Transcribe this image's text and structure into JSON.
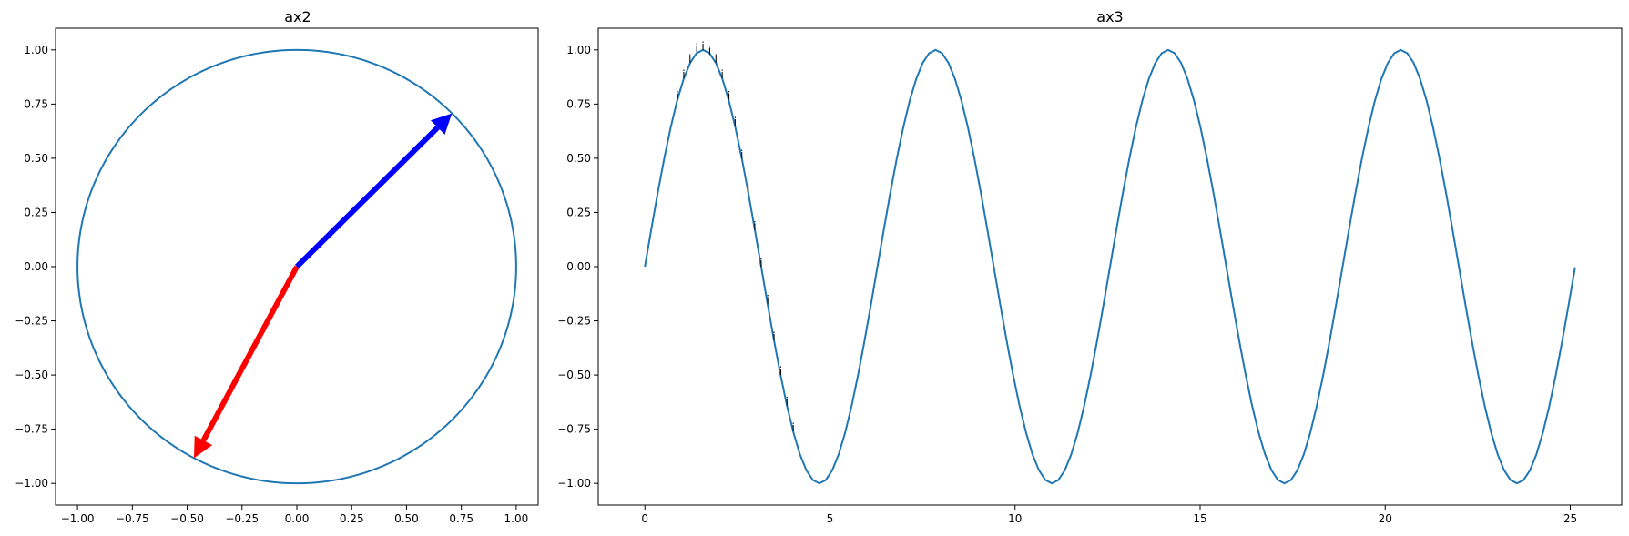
{
  "chart_data": [
    {
      "type": "line",
      "title": "ax2",
      "xlim": [
        -1.1,
        1.1
      ],
      "ylim": [
        -1.1,
        1.1
      ],
      "xticks": [
        "−1.00",
        "−0.75",
        "−0.50",
        "−0.25",
        "0.00",
        "0.25",
        "0.50",
        "0.75",
        "1.00"
      ],
      "yticks": [
        "−1.00",
        "−0.75",
        "−0.50",
        "−0.25",
        "0.00",
        "0.25",
        "0.50",
        "0.75",
        "1.00"
      ],
      "series": [
        {
          "shape": "unit circle",
          "radius": 1.0,
          "color": "#1f77b4"
        }
      ],
      "arrows": [
        {
          "from": [
            0,
            0
          ],
          "to": [
            0.707,
            0.707
          ],
          "color": "#0000ff"
        },
        {
          "from": [
            0,
            0
          ],
          "to": [
            -0.469,
            -0.883
          ],
          "color": "#ff0000"
        }
      ],
      "grid": false
    },
    {
      "type": "line",
      "title": "ax3",
      "xlim": [
        -1.26,
        26.39
      ],
      "ylim": [
        -1.1,
        1.1
      ],
      "xticks": [
        "0",
        "5",
        "10",
        "15",
        "20",
        "25"
      ],
      "yticks": [
        "−1.00",
        "−0.75",
        "−0.50",
        "−0.25",
        "0.00",
        "0.25",
        "0.50",
        "0.75",
        "1.00"
      ],
      "series": [
        {
          "function": "sin(x)",
          "x_range": [
            0,
            25.13
          ],
          "color": "#1f77b4"
        }
      ],
      "annotation_text": "i",
      "annotations": [
        {
          "x": 0.88,
          "y": 0.77
        },
        {
          "x": 1.05,
          "y": 0.87
        },
        {
          "x": 1.22,
          "y": 0.94
        },
        {
          "x": 1.4,
          "y": 0.99
        },
        {
          "x": 1.57,
          "y": 1.0
        },
        {
          "x": 1.75,
          "y": 0.98
        },
        {
          "x": 1.92,
          "y": 0.94
        },
        {
          "x": 2.09,
          "y": 0.87
        },
        {
          "x": 2.27,
          "y": 0.77
        },
        {
          "x": 2.44,
          "y": 0.65
        },
        {
          "x": 2.62,
          "y": 0.5
        },
        {
          "x": 2.79,
          "y": 0.34
        },
        {
          "x": 2.97,
          "y": 0.17
        },
        {
          "x": 3.14,
          "y": 0.0
        },
        {
          "x": 3.32,
          "y": -0.17
        },
        {
          "x": 3.49,
          "y": -0.34
        },
        {
          "x": 3.67,
          "y": -0.5
        },
        {
          "x": 3.84,
          "y": -0.64
        },
        {
          "x": 4.01,
          "y": -0.76
        }
      ],
      "grid": false
    }
  ]
}
